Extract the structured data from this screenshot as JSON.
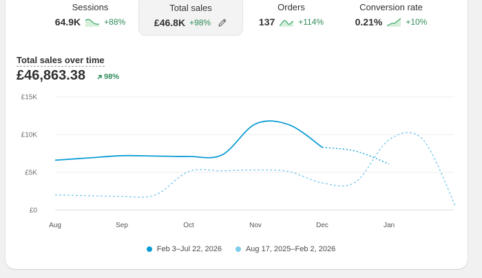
{
  "metrics": [
    {
      "label": "Sessions",
      "value": "64.9K",
      "delta": "+88%",
      "spark": "down",
      "active": false
    },
    {
      "label": "Total sales",
      "value": "£46.8K",
      "delta": "+98%",
      "spark": "none",
      "active": true
    },
    {
      "label": "Orders",
      "value": "137",
      "delta": "+114%",
      "spark": "up",
      "active": false
    },
    {
      "label": "Conversion rate",
      "value": "0.21%",
      "delta": "+10%",
      "spark": "up",
      "active": false
    }
  ],
  "chart_title": "Total sales over time",
  "total_value": "£46,863.38",
  "total_delta": "98%",
  "colors": {
    "primary": "#0a9bd5",
    "comparison": "#7fcbec",
    "positive": "#2e8b57"
  },
  "icons": {
    "edit": "pencil-icon",
    "up": "arrow-up-right-icon"
  },
  "chart_data": {
    "type": "line",
    "y_ticks": [
      "£15K",
      "£10K",
      "£5K",
      "£0"
    ],
    "x_ticks": [
      "Aug",
      "Sep",
      "Oct",
      "Nov",
      "Dec",
      "Jan"
    ],
    "ylim": [
      0,
      15000
    ],
    "grid": true,
    "legend_placement": "bottom-center",
    "series": [
      {
        "name": "Feb 3–Jul 22, 2026",
        "style": "solid-then-dashed",
        "x": [
          0,
          0.5,
          1,
          1.5,
          2,
          2.5,
          3,
          3.5,
          4,
          4.5,
          5
        ],
        "values": [
          6600,
          6900,
          7200,
          7150,
          7100,
          7300,
          11400,
          11300,
          8300,
          7800,
          6100
        ]
      },
      {
        "name": "Aug 17, 2025–Feb 2, 2026",
        "style": "dashed",
        "x": [
          0,
          0.5,
          1,
          1.5,
          2,
          2.5,
          3,
          3.5,
          4,
          4.5,
          5,
          5.5,
          6
        ],
        "values": [
          2000,
          1900,
          1800,
          2000,
          5100,
          5200,
          5300,
          5100,
          3600,
          3700,
          9300,
          9400,
          400
        ]
      }
    ]
  },
  "legend": [
    {
      "label": "Feb 3–Jul 22, 2026"
    },
    {
      "label": "Aug 17, 2025–Feb 2, 2026"
    }
  ]
}
